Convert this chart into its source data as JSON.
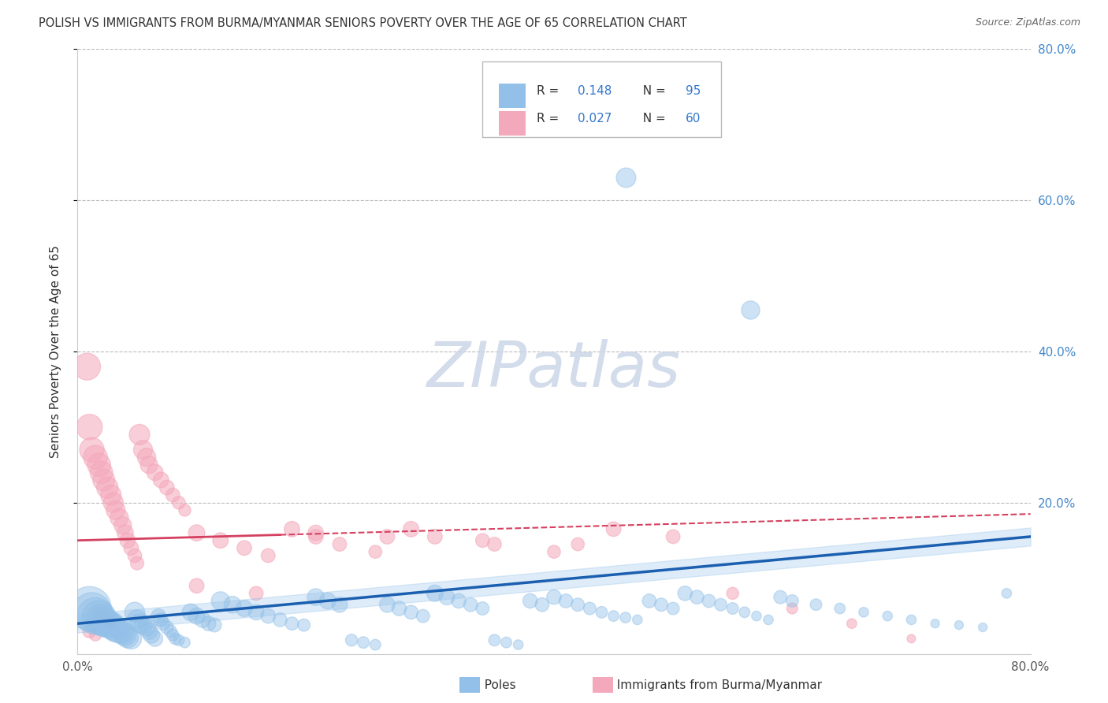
{
  "title": "POLISH VS IMMIGRANTS FROM BURMA/MYANMAR SENIORS POVERTY OVER THE AGE OF 65 CORRELATION CHART",
  "source": "Source: ZipAtlas.com",
  "ylabel": "Seniors Poverty Over the Age of 65",
  "xlim": [
    0.0,
    0.8
  ],
  "ylim": [
    0.0,
    0.8
  ],
  "legend_r_blue": "0.148",
  "legend_n_blue": "95",
  "legend_r_pink": "0.027",
  "legend_n_pink": "60",
  "blue_color": "#92c0e8",
  "pink_color": "#f4a8bb",
  "trendline_blue_color": "#1a5fb0",
  "trendline_pink_color": "#d44060",
  "watermark": "ZIPatlas",
  "poles_x": [
    0.01,
    0.012,
    0.015,
    0.018,
    0.02,
    0.022,
    0.025,
    0.028,
    0.03,
    0.032,
    0.035,
    0.038,
    0.04,
    0.042,
    0.045,
    0.048,
    0.05,
    0.052,
    0.055,
    0.058,
    0.06,
    0.062,
    0.065,
    0.068,
    0.07,
    0.072,
    0.075,
    0.078,
    0.08,
    0.082,
    0.085,
    0.09,
    0.095,
    0.1,
    0.105,
    0.11,
    0.115,
    0.12,
    0.13,
    0.14,
    0.15,
    0.16,
    0.17,
    0.18,
    0.19,
    0.2,
    0.21,
    0.22,
    0.23,
    0.24,
    0.25,
    0.26,
    0.27,
    0.28,
    0.29,
    0.3,
    0.31,
    0.32,
    0.33,
    0.34,
    0.35,
    0.36,
    0.37,
    0.38,
    0.39,
    0.4,
    0.41,
    0.42,
    0.43,
    0.44,
    0.45,
    0.46,
    0.47,
    0.48,
    0.49,
    0.5,
    0.51,
    0.52,
    0.53,
    0.54,
    0.55,
    0.56,
    0.57,
    0.58,
    0.59,
    0.6,
    0.62,
    0.64,
    0.66,
    0.68,
    0.7,
    0.72,
    0.74,
    0.76,
    0.78
  ],
  "poles_y": [
    0.06,
    0.055,
    0.05,
    0.048,
    0.045,
    0.042,
    0.04,
    0.038,
    0.035,
    0.032,
    0.03,
    0.028,
    0.025,
    0.022,
    0.02,
    0.055,
    0.045,
    0.04,
    0.038,
    0.035,
    0.03,
    0.025,
    0.02,
    0.05,
    0.045,
    0.04,
    0.035,
    0.03,
    0.025,
    0.02,
    0.018,
    0.015,
    0.055,
    0.05,
    0.045,
    0.04,
    0.038,
    0.07,
    0.065,
    0.06,
    0.055,
    0.05,
    0.045,
    0.04,
    0.038,
    0.075,
    0.07,
    0.065,
    0.018,
    0.015,
    0.012,
    0.065,
    0.06,
    0.055,
    0.05,
    0.08,
    0.075,
    0.07,
    0.065,
    0.06,
    0.018,
    0.015,
    0.012,
    0.07,
    0.065,
    0.075,
    0.07,
    0.065,
    0.06,
    0.055,
    0.05,
    0.048,
    0.045,
    0.07,
    0.065,
    0.06,
    0.08,
    0.075,
    0.07,
    0.065,
    0.06,
    0.055,
    0.05,
    0.045,
    0.075,
    0.07,
    0.065,
    0.06,
    0.055,
    0.05,
    0.045,
    0.04,
    0.038,
    0.035,
    0.08
  ],
  "poles_sizes": [
    200,
    160,
    140,
    120,
    100,
    90,
    80,
    75,
    70,
    65,
    60,
    55,
    50,
    48,
    45,
    42,
    40,
    38,
    35,
    33,
    30,
    28,
    25,
    22,
    20,
    18,
    18,
    16,
    15,
    14,
    13,
    12,
    30,
    28,
    25,
    22,
    20,
    35,
    30,
    28,
    25,
    22,
    20,
    18,
    16,
    30,
    28,
    25,
    15,
    14,
    12,
    25,
    22,
    20,
    18,
    28,
    25,
    22,
    20,
    18,
    14,
    12,
    10,
    22,
    20,
    22,
    20,
    18,
    16,
    14,
    12,
    12,
    10,
    20,
    18,
    16,
    22,
    20,
    18,
    16,
    14,
    12,
    10,
    10,
    18,
    16,
    14,
    12,
    10,
    10,
    10,
    8,
    8,
    8,
    10
  ],
  "poles_outlier1_x": [
    0.46
  ],
  "poles_outlier1_y": [
    0.63
  ],
  "poles_outlier1_size": [
    40
  ],
  "poles_outlier2_x": [
    0.565
  ],
  "poles_outlier2_y": [
    0.455
  ],
  "poles_outlier2_size": [
    35
  ],
  "burma_x": [
    0.008,
    0.01,
    0.012,
    0.015,
    0.018,
    0.02,
    0.022,
    0.025,
    0.028,
    0.03,
    0.032,
    0.035,
    0.038,
    0.04,
    0.042,
    0.045,
    0.048,
    0.05,
    0.052,
    0.055,
    0.058,
    0.06,
    0.065,
    0.07,
    0.075,
    0.08,
    0.085,
    0.09,
    0.01,
    0.015,
    0.018,
    0.02,
    0.022,
    0.025,
    0.028,
    0.03,
    0.1,
    0.12,
    0.14,
    0.16,
    0.18,
    0.2,
    0.22,
    0.25,
    0.28,
    0.3,
    0.35,
    0.4,
    0.45,
    0.5,
    0.55,
    0.6,
    0.65,
    0.7,
    0.1,
    0.15,
    0.2,
    0.26,
    0.34,
    0.42
  ],
  "burma_y": [
    0.38,
    0.3,
    0.27,
    0.26,
    0.25,
    0.24,
    0.23,
    0.22,
    0.21,
    0.2,
    0.19,
    0.18,
    0.17,
    0.16,
    0.15,
    0.14,
    0.13,
    0.12,
    0.29,
    0.27,
    0.26,
    0.25,
    0.24,
    0.23,
    0.22,
    0.21,
    0.2,
    0.19,
    0.03,
    0.025,
    0.055,
    0.052,
    0.048,
    0.045,
    0.042,
    0.04,
    0.16,
    0.15,
    0.14,
    0.13,
    0.165,
    0.155,
    0.145,
    0.135,
    0.165,
    0.155,
    0.145,
    0.135,
    0.165,
    0.155,
    0.08,
    0.06,
    0.04,
    0.02,
    0.09,
    0.08,
    0.16,
    0.155,
    0.15,
    0.145
  ],
  "burma_sizes": [
    60,
    55,
    50,
    48,
    45,
    42,
    40,
    38,
    35,
    33,
    30,
    28,
    25,
    22,
    20,
    18,
    16,
    15,
    35,
    30,
    28,
    25,
    22,
    20,
    18,
    16,
    14,
    12,
    15,
    12,
    20,
    18,
    16,
    14,
    12,
    10,
    22,
    20,
    18,
    16,
    20,
    18,
    16,
    14,
    20,
    18,
    16,
    14,
    18,
    16,
    12,
    10,
    8,
    6,
    18,
    16,
    20,
    18,
    16,
    14
  ]
}
